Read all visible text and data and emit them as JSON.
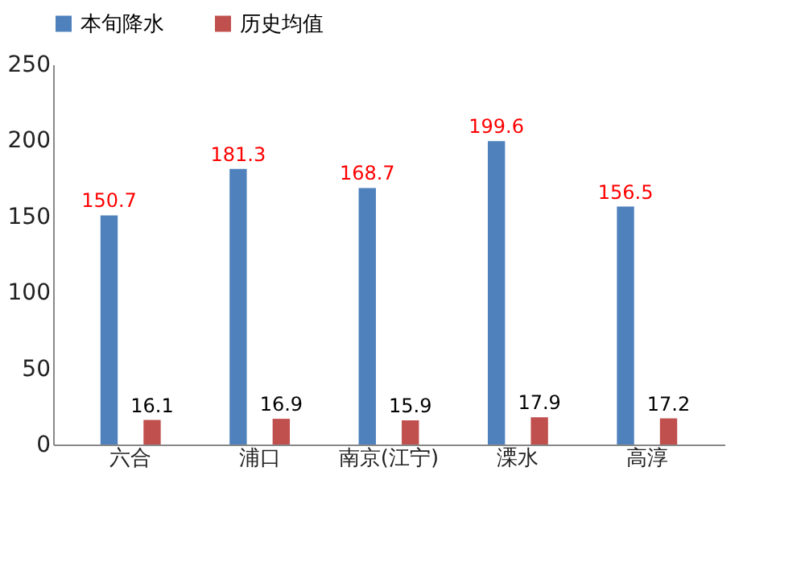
{
  "chart_data": {
    "type": "bar",
    "categories": [
      "六合",
      "浦口",
      "南京(江宁)",
      "溧水",
      "高淳"
    ],
    "series": [
      {
        "name": "本旬降水",
        "color": "#4f81bd",
        "values": [
          150.7,
          181.3,
          168.7,
          199.6,
          156.5
        ]
      },
      {
        "name": "历史均值",
        "color": "#c0504d",
        "values": [
          16.1,
          16.9,
          15.9,
          17.9,
          17.2
        ]
      }
    ],
    "ylim": [
      0,
      250
    ],
    "yticks": [
      0,
      50,
      100,
      150,
      200,
      250
    ],
    "data_labels": true,
    "legend": "top",
    "grid": false
  }
}
